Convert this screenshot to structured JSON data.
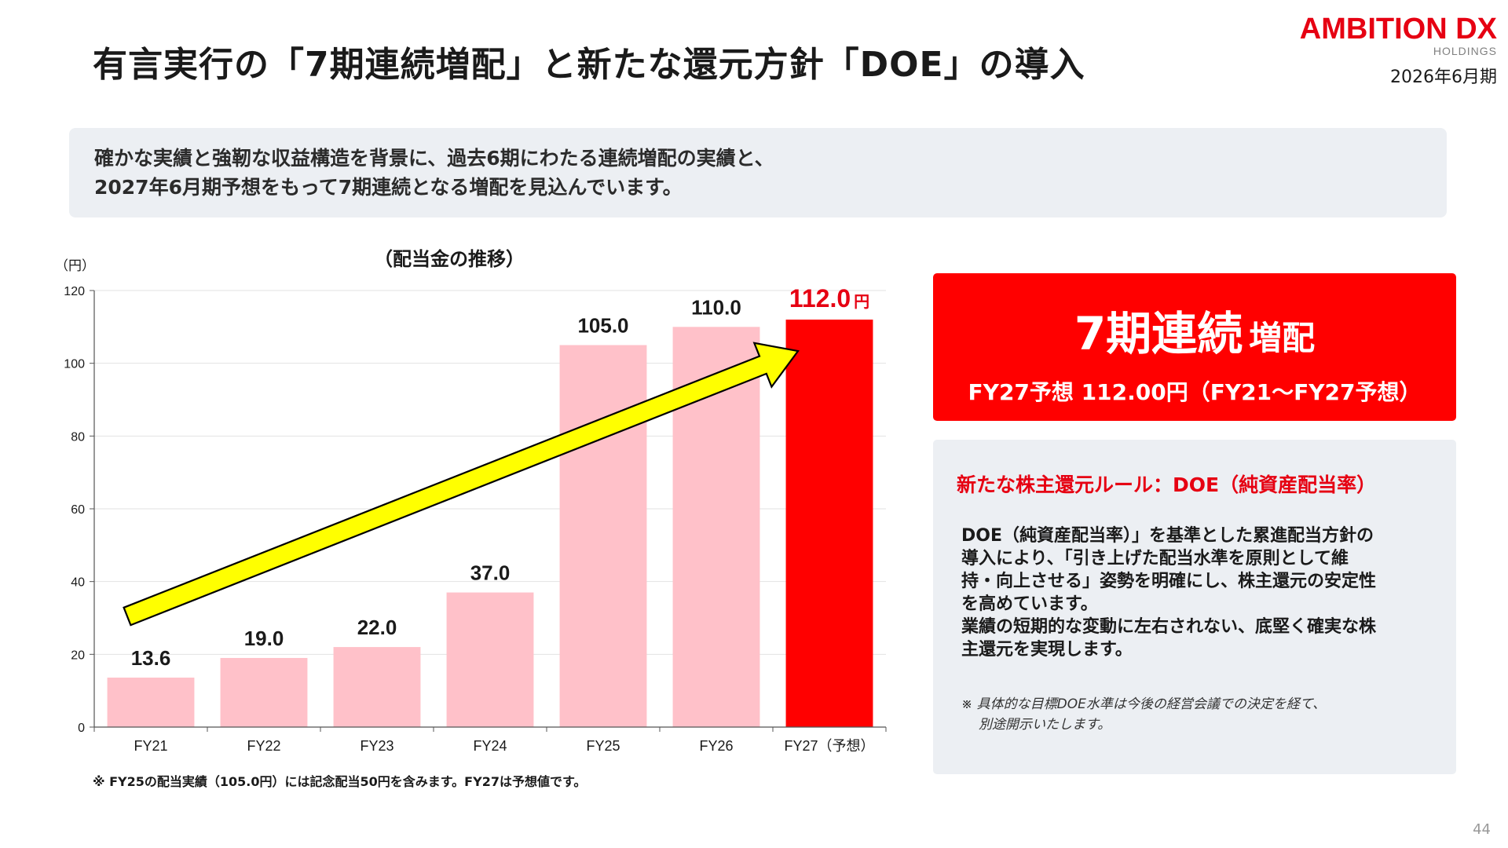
{
  "header": {
    "title": "有言実行の「7期連続増配」と新たな還元方針「DOE」の導入",
    "logo_main": "AMBITION DX",
    "logo_sub": "HOLDINGS",
    "period": "2026年6月期"
  },
  "intro": {
    "line1": "確かな実績と強靭な収益構造を背景に、過去6期にわたる連続増配の実績と、",
    "line2": "2027年6月期予想をもって7期連続となる増配を見込んでいます。"
  },
  "chart_data": {
    "type": "bar",
    "title": "（配当金の推移）",
    "ylabel": "（円）",
    "xlabel": "",
    "categories": [
      "FY21",
      "FY22",
      "FY23",
      "FY24",
      "FY25",
      "FY26",
      "FY27（予想）"
    ],
    "values": [
      13.6,
      19.0,
      22.0,
      37.0,
      105.0,
      110.0,
      112.0
    ],
    "value_labels": [
      "13.6",
      "19.0",
      "22.0",
      "37.0",
      "105.0",
      "110.0",
      "112.0"
    ],
    "highlight_unit": "円",
    "ylim": [
      0,
      120
    ],
    "yticks": [
      0,
      20,
      40,
      60,
      80,
      100,
      120
    ],
    "colors": {
      "actual": "#ffc1c9",
      "forecast": "#ff0000",
      "arrow_fill": "#ffff00",
      "arrow_stroke": "#000000"
    },
    "highlight_index": 6,
    "grid": "horizontal",
    "annotation": "upward trend arrow from FY21 to FY27"
  },
  "chart_note": "※ FY25の配当実績（105.0円）には記念配当50円を含みます。FY27は予想値です。",
  "highlight": {
    "big": "7期連続",
    "small": "増配",
    "sub": "FY27予想 112.00円（FY21～FY27予想）"
  },
  "doe": {
    "heading": "新たな株主還元ルール：DOE（純資産配当率）",
    "body_lines": [
      "DOE（純資産配当率）」を基準とした累進配当方針の",
      "導入により、「引き上げた配当水準を原則として維",
      "持・向上させる」姿勢を明確にし、株主還元の安定性",
      "を高めています。",
      "業績の短期的な変動に左右されない、底堅く確実な株",
      "主還元を実現します。"
    ],
    "footnote_1": "※ 具体的な目標DOE水準は今後の経営会議での決定を経て、",
    "footnote_2": "別途開示いたします。"
  },
  "page_number": "44"
}
